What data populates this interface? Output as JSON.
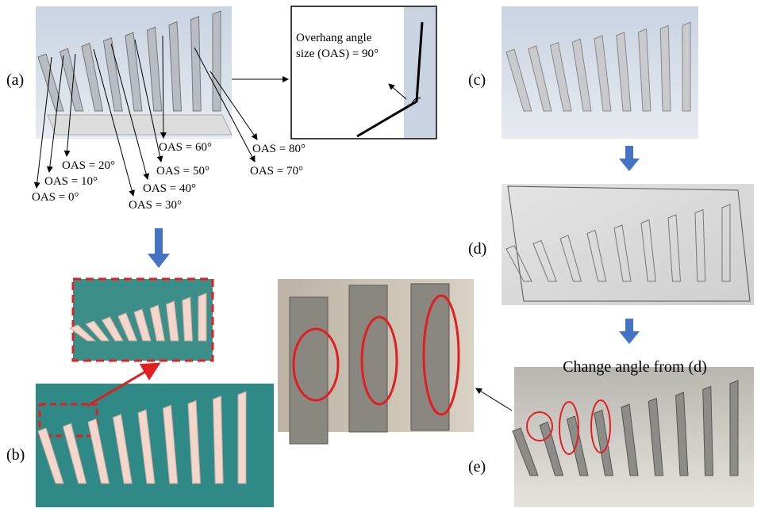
{
  "panels": {
    "a": "(a)",
    "b": "(b)",
    "c": "(c)",
    "d": "(d)",
    "e": "(e)"
  },
  "oas_labels": [
    "OAS = 0°",
    "OAS = 10°",
    "OAS = 20°",
    "OAS = 30°",
    "OAS = 40°",
    "OAS = 50°",
    "OAS = 60°",
    "OAS = 70°",
    "OAS = 80°"
  ],
  "callout": [
    "Overhang angle",
    "size (OAS) = 90°"
  ],
  "caption_e": "Change angle from (d)"
}
